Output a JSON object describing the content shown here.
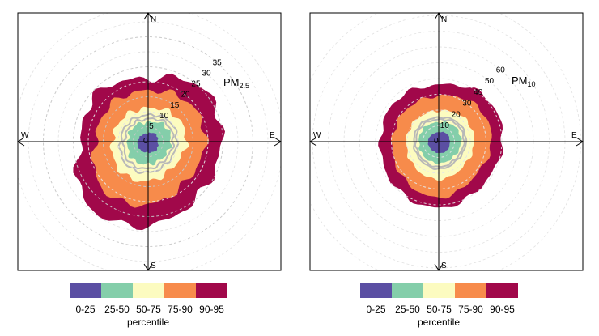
{
  "colors": {
    "band_0_25": "#5b4fa3",
    "band_25_50": "#84ceaa",
    "band_50_75": "#fcfbc0",
    "band_75_90": "#f78b4b",
    "band_90_95": "#a1084a",
    "median_line": "#b8b8b8",
    "grid": "#c8c8c8"
  },
  "chart_data": [
    {
      "type": "polar-percentile-rose",
      "pollutant_label": "PM",
      "pollutant_subscript": "2.5",
      "compass": [
        "N",
        "E",
        "S",
        "W"
      ],
      "ring_labels": [
        0,
        5,
        10,
        15,
        20,
        25,
        30,
        35
      ],
      "legend_title": "percentile",
      "legend": [
        "0-25",
        "25-50",
        "50-75",
        "75-90",
        "90-95"
      ],
      "series": [
        {
          "name": "0-25",
          "values": [
            2.8,
            3.6,
            3.2,
            3.9,
            3.6,
            3.8,
            3.5,
            3.0
          ]
        },
        {
          "name": "25-50",
          "values": [
            6.5,
            7.8,
            7.6,
            7.3,
            7.5,
            7.8,
            6.8,
            7.0
          ]
        },
        {
          "name": "50-75",
          "values": [
            11.2,
            12.5,
            12.8,
            11.8,
            13.2,
            13.5,
            12.0,
            11.6
          ]
        },
        {
          "name": "75-90",
          "values": [
            17.0,
            18.8,
            19.2,
            18.2,
            21.0,
            21.8,
            17.6,
            17.6
          ]
        },
        {
          "name": "90-95",
          "values": [
            21.0,
            25.5,
            24.5,
            24.5,
            28.0,
            29.0,
            22.5,
            23.5
          ]
        }
      ],
      "median": [
        7.6,
        8.6,
        8.4,
        8.2,
        9.0,
        9.2,
        8.0,
        7.8
      ],
      "ylim": [
        0,
        40
      ]
    },
    {
      "type": "polar-percentile-rose",
      "pollutant_label": "PM",
      "pollutant_subscript": "10",
      "compass": [
        "N",
        "E",
        "S",
        "W"
      ],
      "ring_labels": [
        0,
        10,
        20,
        30,
        40,
        50,
        60
      ],
      "legend_title": "percentile",
      "legend": [
        "0-25",
        "25-50",
        "50-75",
        "75-90",
        "90-95"
      ],
      "series": [
        {
          "name": "0-25",
          "values": [
            6.0,
            7.2,
            7.0,
            7.6,
            7.2,
            6.8,
            6.8,
            6.2
          ]
        },
        {
          "name": "25-50",
          "values": [
            12.2,
            14.0,
            14.2,
            13.4,
            13.8,
            13.2,
            12.6,
            12.8
          ]
        },
        {
          "name": "50-75",
          "values": [
            19.5,
            22.0,
            22.5,
            22.0,
            24.0,
            22.0,
            20.5,
            20.0
          ]
        },
        {
          "name": "75-90",
          "values": [
            29.0,
            33.0,
            33.5,
            31.5,
            35.5,
            32.0,
            29.5,
            29.0
          ]
        },
        {
          "name": "90-95",
          "values": [
            36.0,
            41.0,
            40.5,
            39.0,
            42.0,
            39.5,
            37.0,
            37.5
          ]
        }
      ],
      "median": [
        14.0,
        15.8,
        16.0,
        15.2,
        16.0,
        15.0,
        14.5,
        14.6
      ],
      "ylim": [
        0,
        70
      ]
    }
  ]
}
